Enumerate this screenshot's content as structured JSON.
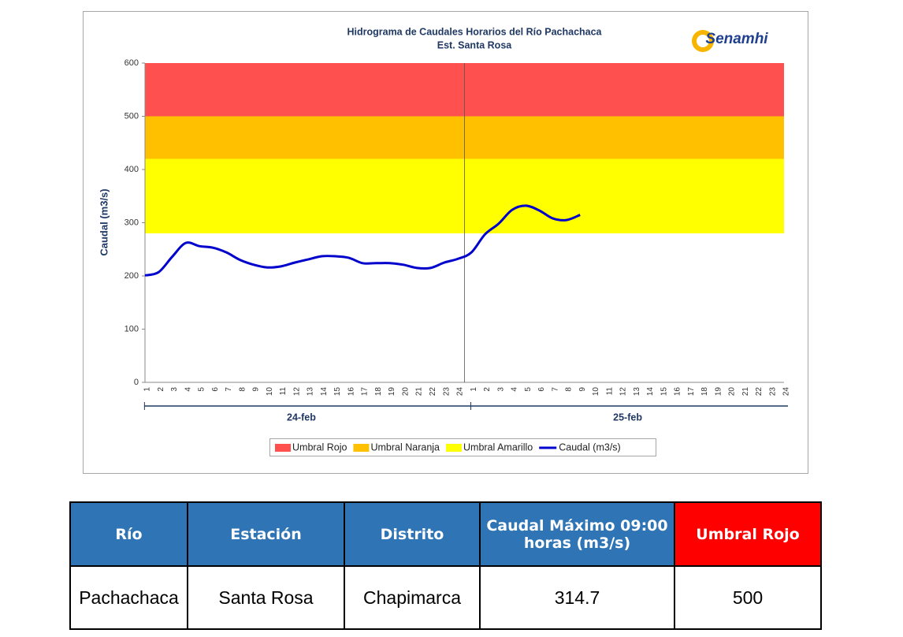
{
  "chart_data": {
    "type": "line",
    "title": "Hidrograma de Caudales Horarios del Río Pachachaca",
    "subtitle": "Est. Santa Rosa",
    "logo": "Senamhi",
    "ylabel": "Caudal (m3/s)",
    "ylim": [
      0,
      600
    ],
    "yticks": [
      0,
      100,
      200,
      300,
      400,
      500,
      600
    ],
    "categories": [
      "1",
      "2",
      "3",
      "4",
      "5",
      "6",
      "7",
      "8",
      "9",
      "10",
      "11",
      "12",
      "13",
      "14",
      "15",
      "16",
      "17",
      "18",
      "19",
      "20",
      "21",
      "22",
      "23",
      "24",
      "1",
      "2",
      "3",
      "4",
      "5",
      "6",
      "7",
      "8",
      "9",
      "10",
      "11",
      "12",
      "13",
      "14",
      "15",
      "16",
      "17",
      "18",
      "19",
      "20",
      "21",
      "22",
      "23",
      "24"
    ],
    "groups": [
      "24-feb",
      "25-feb"
    ],
    "thresholds": [
      {
        "name": "Umbral Rojo",
        "color": "#ff5050",
        "value": 500
      },
      {
        "name": "Umbral Naranja",
        "color": "#ffc000",
        "value": 420
      },
      {
        "name": "Umbral Amarillo",
        "color": "#ffff00",
        "value": 280
      }
    ],
    "series": [
      {
        "name": "Caudal (m3/s)",
        "color": "#0000cc",
        "values": [
          201,
          207,
          236,
          262,
          256,
          253,
          244,
          230,
          221,
          216,
          218,
          225,
          231,
          237,
          237,
          234,
          224,
          224,
          224,
          221,
          215,
          215,
          225,
          232,
          244,
          278,
          298,
          324,
          332,
          323,
          308,
          305,
          314.7,
          null,
          null,
          null,
          null,
          null,
          null,
          null,
          null,
          null,
          null,
          null,
          null,
          null,
          null,
          null
        ]
      }
    ]
  },
  "table": {
    "header": [
      "Río",
      "Estación",
      "Distrito",
      "Caudal Máximo 09:00 horas (m3/s)",
      "Umbral Rojo"
    ],
    "rows": [
      [
        "Pachachaca",
        "Santa Rosa",
        "Chapimarca",
        "314.7",
        "500"
      ]
    ]
  }
}
